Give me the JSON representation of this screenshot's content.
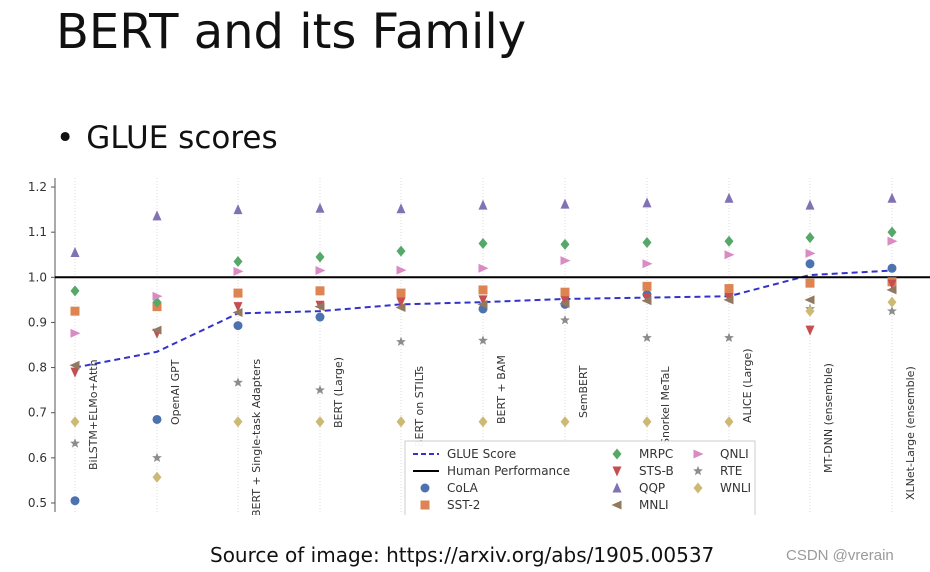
{
  "slide": {
    "title": "BERT and its Family",
    "bullet": "GLUE scores",
    "source": "Source of image: https://arxiv.org/abs/1905.00537",
    "watermark": "CSDN @vrerain"
  },
  "chart_data": {
    "type": "scatter",
    "categories": [
      "BiLSTM+ELMo+Attn",
      "OpenAI GPT",
      "BERT + Single-task Adapters",
      "BERT (Large)",
      "BERT on STILTs",
      "BERT + BAM",
      "SemBERT",
      "Snorkel MeTaL",
      "ALICE (Large)",
      "MT-DNN (ensemble)",
      "XLNet-Large (ensemble)"
    ],
    "ylim": [
      0.48,
      1.22
    ],
    "yticks": [
      0.5,
      0.6,
      0.7,
      0.8,
      0.9,
      1.0,
      1.1,
      1.2
    ],
    "grid": true,
    "legend_position": "bottom-center",
    "lines": [
      {
        "name": "GLUE Score",
        "color": "#3333cc",
        "dash": true,
        "values": [
          0.8,
          0.835,
          0.92,
          0.925,
          0.94,
          0.945,
          0.952,
          0.955,
          0.958,
          1.005,
          1.015
        ]
      },
      {
        "name": "Human Performance",
        "color": "#000000",
        "dash": false,
        "values": [
          1.0,
          1.0,
          1.0,
          1.0,
          1.0,
          1.0,
          1.0,
          1.0,
          1.0,
          1.0,
          1.0
        ]
      }
    ],
    "series": [
      {
        "name": "CoLA",
        "marker": "circle",
        "color": "#4c72b0",
        "values": [
          0.505,
          0.685,
          0.893,
          0.912,
          0.96,
          0.93,
          0.94,
          0.962,
          0.965,
          1.03,
          1.02
        ]
      },
      {
        "name": "SST-2",
        "marker": "square",
        "color": "#dd8452",
        "values": [
          0.925,
          0.935,
          0.965,
          0.97,
          0.965,
          0.972,
          0.967,
          0.98,
          0.975,
          0.987,
          0.99
        ]
      },
      {
        "name": "MRPC",
        "marker": "diamond",
        "color": "#55a868",
        "values": [
          0.97,
          0.945,
          1.035,
          1.045,
          1.058,
          1.075,
          1.073,
          1.077,
          1.08,
          1.088,
          1.1
        ]
      },
      {
        "name": "STS-B",
        "marker": "triangle-down",
        "color": "#c44e52",
        "values": [
          0.79,
          0.876,
          0.935,
          0.938,
          0.945,
          0.95,
          0.948,
          0.955,
          0.955,
          0.883,
          0.985
        ]
      },
      {
        "name": "QQP",
        "marker": "triangle-up",
        "color": "#8172b3",
        "values": [
          1.055,
          1.136,
          1.15,
          1.153,
          1.152,
          1.16,
          1.162,
          1.165,
          1.175,
          1.16,
          1.175
        ]
      },
      {
        "name": "MNLI",
        "marker": "triangle-left",
        "color": "#937860",
        "values": [
          0.805,
          0.883,
          0.922,
          0.935,
          0.933,
          0.94,
          0.942,
          0.948,
          0.95,
          0.95,
          0.972
        ]
      },
      {
        "name": "QNLI",
        "marker": "triangle-right",
        "color": "#da8bc3",
        "values": [
          0.876,
          0.958,
          1.013,
          1.015,
          1.016,
          1.02,
          1.037,
          1.03,
          1.05,
          1.053,
          1.08
        ]
      },
      {
        "name": "RTE",
        "marker": "star",
        "color": "#8c8c8c",
        "values": [
          0.632,
          0.6,
          0.767,
          0.75,
          0.857,
          0.86,
          0.905,
          0.866,
          0.866,
          0.93,
          0.925
        ]
      },
      {
        "name": "WNLI",
        "marker": "diamond",
        "color": "#ccb974",
        "values": [
          0.68,
          0.557,
          0.68,
          0.68,
          0.68,
          0.68,
          0.68,
          0.68,
          0.68,
          0.925,
          0.945
        ]
      }
    ]
  }
}
